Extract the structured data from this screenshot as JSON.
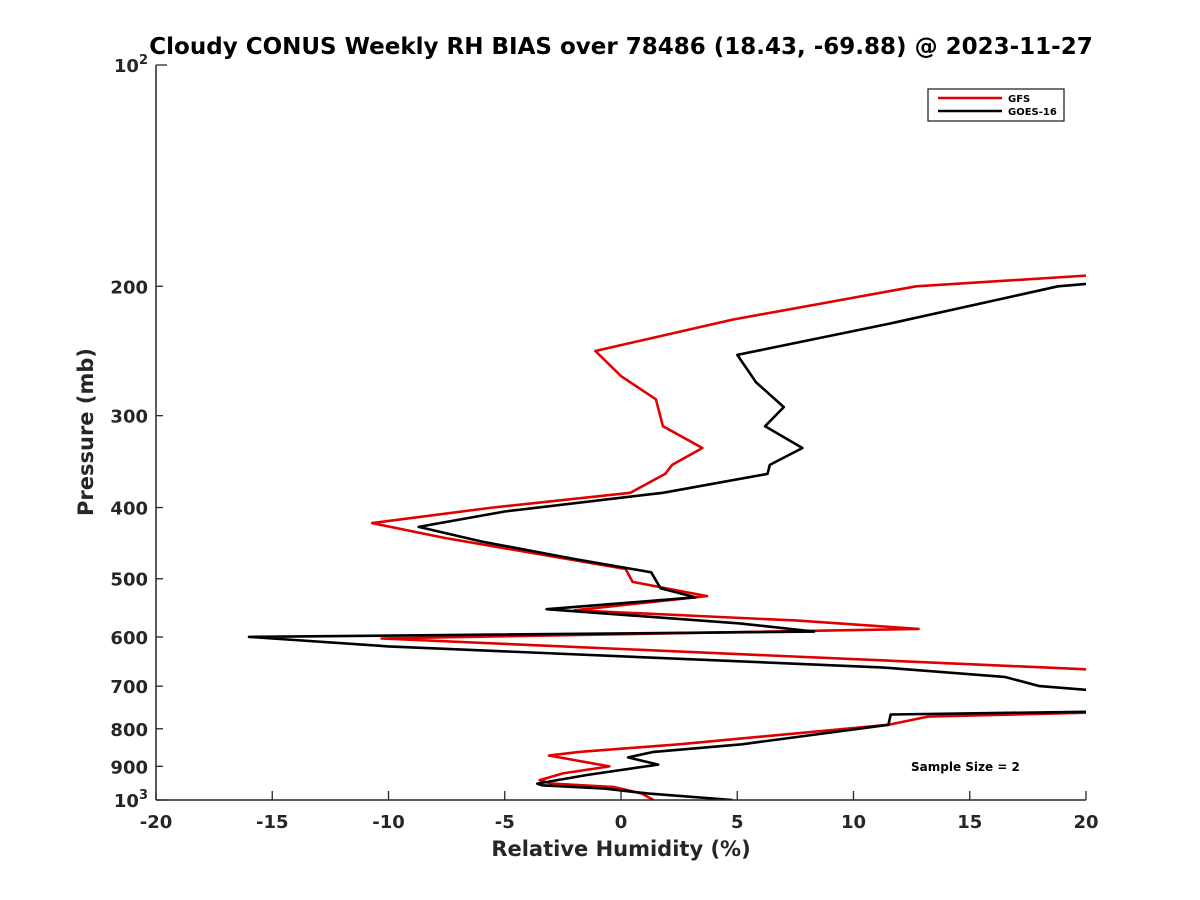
{
  "chart_data": {
    "type": "line",
    "title": "Cloudy CONUS Weekly RH BIAS over 78486 (18.43, -69.88) @ 2023-11-27",
    "xlabel": "Relative Humidity (%)",
    "ylabel": "Pressure (mb)",
    "xlim": [
      -20,
      20
    ],
    "ylim": [
      100,
      1000
    ],
    "y_scale": "log",
    "y_reversed": true,
    "x_ticks": [
      "-20",
      "-15",
      "-10",
      "-5",
      "0",
      "5",
      "10",
      "15",
      "20"
    ],
    "y_ticks_major": [
      {
        "value": 100,
        "base": "10",
        "exp": "2"
      },
      {
        "value": 1000,
        "base": "10",
        "exp": "3"
      }
    ],
    "y_ticks_minor": [
      "200",
      "300",
      "400",
      "500",
      "600",
      "700",
      "800",
      "900"
    ],
    "legend_position": "top-right",
    "annotation": "Sample Size = 2",
    "series": [
      {
        "name": "GFS",
        "color": "#e00000",
        "points": [
          [
            1.4,
            1000
          ],
          [
            0.9,
            980
          ],
          [
            -0.3,
            960
          ],
          [
            -3.0,
            950
          ],
          [
            -3.5,
            940
          ],
          [
            -2.5,
            920
          ],
          [
            -0.5,
            900
          ],
          [
            -3.1,
            870
          ],
          [
            -1.8,
            860
          ],
          [
            2.5,
            840
          ],
          [
            11.5,
            790
          ],
          [
            13.2,
            770
          ],
          [
            20.5,
            760
          ],
          [
            20.5,
            665
          ],
          [
            -10.3,
            603
          ],
          [
            12.8,
            585
          ],
          [
            7.6,
            570
          ],
          [
            -2.0,
            552
          ],
          [
            3.7,
            528
          ],
          [
            0.5,
            505
          ],
          [
            0.2,
            485
          ],
          [
            -7.6,
            440
          ],
          [
            -10.7,
            420
          ],
          [
            -5.5,
            400
          ],
          [
            0.4,
            382
          ],
          [
            1.9,
            360
          ],
          [
            2.2,
            350
          ],
          [
            3.5,
            332
          ],
          [
            1.8,
            310
          ],
          [
            1.5,
            285
          ],
          [
            0.0,
            265
          ],
          [
            -1.1,
            245
          ],
          [
            4.8,
            222
          ],
          [
            12.7,
            200
          ],
          [
            20.5,
            193
          ]
        ]
      },
      {
        "name": "GOES-16",
        "color": "#000000",
        "points": [
          [
            4.8,
            1000
          ],
          [
            1.2,
            980
          ],
          [
            -0.7,
            965
          ],
          [
            -3.4,
            955
          ],
          [
            -3.6,
            950
          ],
          [
            -1.5,
            925
          ],
          [
            1.6,
            895
          ],
          [
            0.3,
            875
          ],
          [
            1.4,
            860
          ],
          [
            5.2,
            840
          ],
          [
            11.5,
            790
          ],
          [
            11.6,
            765
          ],
          [
            20.5,
            758
          ],
          [
            20.5,
            710
          ],
          [
            18.0,
            700
          ],
          [
            16.5,
            680
          ],
          [
            11.2,
            660
          ],
          [
            -10.0,
            618
          ],
          [
            -16.0,
            600
          ],
          [
            8.3,
            590
          ],
          [
            5.1,
            575
          ],
          [
            -3.2,
            550
          ],
          [
            3.2,
            530
          ],
          [
            1.7,
            515
          ],
          [
            1.3,
            490
          ],
          [
            -2.0,
            470
          ],
          [
            -6.0,
            445
          ],
          [
            -8.7,
            425
          ],
          [
            -5.0,
            405
          ],
          [
            1.8,
            382
          ],
          [
            6.3,
            360
          ],
          [
            6.4,
            350
          ],
          [
            7.8,
            332
          ],
          [
            6.2,
            310
          ],
          [
            7.0,
            292
          ],
          [
            5.8,
            270
          ],
          [
            5.0,
            248
          ],
          [
            11.5,
            225
          ],
          [
            18.8,
            200
          ],
          [
            20.5,
            198
          ]
        ]
      }
    ]
  }
}
